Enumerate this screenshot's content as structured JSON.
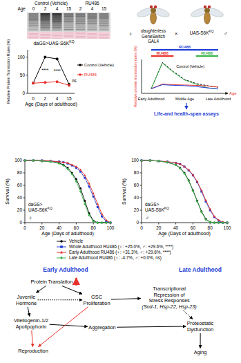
{
  "blot": {
    "row_label": "Age",
    "groups": [
      {
        "label": "Control (Vehicle)",
        "lanes": [
          "0",
          "2",
          "4",
          "15"
        ]
      },
      {
        "label": "RU486",
        "lanes": [
          "2",
          "4",
          "15"
        ]
      }
    ]
  },
  "cross": {
    "female_symbol": "♀",
    "female_line": [
      "daughterless",
      "GeneSwitch",
      "GAL4"
    ],
    "cross_symbol": "×",
    "male_line": "UAS-S6K",
    "male_line_sup": "KQ",
    "male_symbol": "♂",
    "assay": "Life-and health-span assays"
  },
  "chart_data": [
    {
      "type": "line",
      "title": "daGS>UAS-S6K",
      "title_sup": "KQ",
      "x_label": "Age (Days of adulthood)",
      "y_label": "Relative Protein Translation Rates (%)",
      "categories": [
        "0",
        "2",
        "4",
        "15"
      ],
      "ylim": [
        0,
        120
      ],
      "yticks": [
        0,
        50,
        100
      ],
      "legend": "right",
      "series": [
        {
          "name": "Control (Vehicle)",
          "color": "#000000",
          "marker": "circle",
          "values": [
            28,
            100,
            95,
            25
          ]
        },
        {
          "name": "RU486",
          "color": "#e8302a",
          "marker": "circle",
          "values": [
            28,
            30,
            32,
            22
          ]
        }
      ],
      "annotations": [
        {
          "category": "2",
          "text": "****"
        },
        {
          "category": "4",
          "text": "****"
        },
        {
          "category": "15",
          "text": "ns"
        }
      ]
    },
    {
      "type": "line",
      "x_label": "Age",
      "y_label": "Relative protein translation rates (%)",
      "categories": [
        "Early Adulthood",
        null,
        null,
        "Middle Age",
        null,
        null,
        "Late Adulthood"
      ],
      "ylim": [
        0,
        110
      ],
      "tick_labels": "x",
      "legend": "inside",
      "series": [
        {
          "name": "Control (Vehicle)",
          "color": "#000000",
          "line_style": "dashed",
          "values": [
            15,
            100,
            70,
            45,
            32,
            25,
            20
          ]
        },
        {
          "color": "#39b54a",
          "values": [
            15,
            98,
            68,
            43,
            30,
            18,
            14
          ]
        },
        {
          "color": "#e8302a",
          "values": [
            15,
            30,
            28,
            27,
            26,
            24,
            20
          ]
        },
        {
          "color": "#1f3fd6",
          "values": [
            15,
            28,
            26,
            25,
            22,
            18,
            14
          ]
        }
      ],
      "periods": [
        {
          "label": "RU486",
          "color": "#1f3fd6",
          "from": 0,
          "to": 6
        },
        {
          "label": "RU486",
          "color": "#e8302a",
          "from": 0,
          "to": 2
        },
        {
          "label": "RU486",
          "color": "#39b54a",
          "from": 4,
          "to": 6
        }
      ]
    },
    {
      "type": "line",
      "title": "daGS>UAS-S6K",
      "title_sup": "KQ",
      "sex": "♀",
      "x_label": "Age (Days of adulthood)",
      "y_label": "Survival (%)",
      "x": [
        0,
        10,
        20,
        30,
        40,
        45,
        50,
        55,
        60,
        65,
        70,
        75,
        80,
        85,
        90,
        95,
        100
      ],
      "xlim": [
        0,
        100
      ],
      "xticks": [
        0,
        20,
        40,
        60,
        80,
        100
      ],
      "ylim": [
        0,
        100
      ],
      "yticks": [
        0,
        20,
        40,
        60,
        80,
        100
      ],
      "legend": "bottom",
      "series": [
        {
          "name": "Vehicle",
          "color": "#000000",
          "marker": "circle",
          "values": [
            100,
            100,
            99,
            98,
            96,
            93,
            88,
            80,
            70,
            55,
            35,
            15,
            3,
            0,
            0,
            0,
            0
          ]
        },
        {
          "name": "Whole Adulthood RU486 (♀: +25.0%, ♂: +29.6%, ****)",
          "color": "#1f3fd6",
          "marker": "square",
          "values": [
            100,
            100,
            100,
            99,
            98,
            97,
            95,
            92,
            88,
            82,
            72,
            58,
            42,
            25,
            10,
            2,
            0
          ]
        },
        {
          "name": "Early Adulthood RU486 (♀: +31.3%, ♂: +29.6%, ****)",
          "color": "#e8302a",
          "marker": "triangle",
          "values": [
            100,
            100,
            100,
            99,
            98,
            97,
            96,
            93,
            90,
            85,
            76,
            63,
            47,
            30,
            14,
            4,
            0
          ]
        },
        {
          "name": "Late Adulthood RU486 (♀: -4.7%, ♂: +0.0%, ns)",
          "color": "#39b54a",
          "marker": "diamond",
          "values": [
            100,
            100,
            99,
            98,
            95,
            92,
            86,
            78,
            66,
            50,
            30,
            12,
            2,
            0,
            0,
            0,
            0
          ]
        }
      ]
    },
    {
      "type": "line",
      "title": "daGS>UAS-S6K",
      "title_sup": "KQ",
      "sex": "♂",
      "x_label": "Age (Days of adulthood)",
      "y_label": "Survival (%)",
      "x": [
        0,
        10,
        20,
        30,
        40,
        45,
        50,
        55,
        60,
        65,
        70,
        75,
        80,
        85,
        90,
        95,
        100
      ],
      "xlim": [
        0,
        100
      ],
      "xticks": [
        0,
        20,
        40,
        60,
        80,
        100
      ],
      "ylim": [
        0,
        100
      ],
      "yticks": [
        0,
        20,
        40,
        60,
        80,
        100
      ],
      "series": [
        {
          "color": "#000000",
          "marker": "circle",
          "values": [
            100,
            100,
            99,
            97,
            93,
            88,
            80,
            68,
            52,
            35,
            18,
            6,
            1,
            0,
            0,
            0,
            0
          ]
        },
        {
          "color": "#1f3fd6",
          "marker": "square",
          "values": [
            100,
            100,
            99,
            98,
            96,
            94,
            90,
            84,
            76,
            65,
            50,
            34,
            20,
            9,
            3,
            0,
            0
          ]
        },
        {
          "color": "#e8302a",
          "marker": "triangle",
          "values": [
            100,
            100,
            99,
            98,
            96,
            94,
            90,
            85,
            77,
            66,
            52,
            36,
            22,
            10,
            4,
            1,
            0
          ]
        },
        {
          "color": "#39b54a",
          "marker": "diamond",
          "values": [
            100,
            100,
            99,
            97,
            93,
            87,
            79,
            67,
            51,
            34,
            17,
            5,
            1,
            0,
            0,
            0,
            0
          ]
        }
      ]
    }
  ],
  "diagram": {
    "headers": [
      "Early Adulthood",
      "Late Adulthood"
    ],
    "nodes": [
      {
        "lines": [
          "Protein Translation"
        ]
      },
      {
        "lines": [
          "Juvenile",
          "Hormone"
        ]
      },
      {
        "lines": [
          "GSC",
          "Proliferation"
        ]
      },
      {
        "lines": [
          "Transcriptional",
          "Repression of",
          "Stress Responses",
          "(Sod-1, Hsp-22, Hsp-23)"
        ]
      },
      {
        "lines": [
          "Vitellogenin-1/2",
          "Apolipophorin"
        ]
      },
      {
        "lines": [
          "Aggregation"
        ]
      },
      {
        "lines": [
          "Reproduction"
        ]
      },
      {
        "lines": [
          "Proteostatic",
          "Dysfunction"
        ]
      },
      {
        "lines": [
          "Aging"
        ]
      }
    ],
    "edges": [
      {
        "from": 0,
        "to": 1,
        "line_style": "solid",
        "color": "#000000"
      },
      {
        "from": 0,
        "to": 2,
        "line_style": "solid",
        "color": "#000000"
      },
      {
        "from": 1,
        "to": 2,
        "line_style": "dotted",
        "color": "#000000"
      },
      {
        "from": 2,
        "to": 3,
        "line_style": "solid",
        "color": "#000000"
      },
      {
        "from": 1,
        "to": 4,
        "line_style": "solid",
        "color": "#000000"
      },
      {
        "from": 4,
        "to": 5,
        "line_style": "solid",
        "color": "#000000"
      },
      {
        "from": 4,
        "to": 6,
        "line_style": "solid",
        "color": "#e8302a"
      },
      {
        "from": 2,
        "to": 6,
        "line_style": "solid",
        "color": "#e8302a"
      },
      {
        "from": 3,
        "to": 7,
        "line_style": "dotted",
        "color": "#000000"
      },
      {
        "from": 5,
        "to": 7,
        "line_style": "solid",
        "color": "#000000"
      },
      {
        "from": 7,
        "to": 8,
        "line_style": "solid",
        "color": "#000000"
      }
    ]
  }
}
